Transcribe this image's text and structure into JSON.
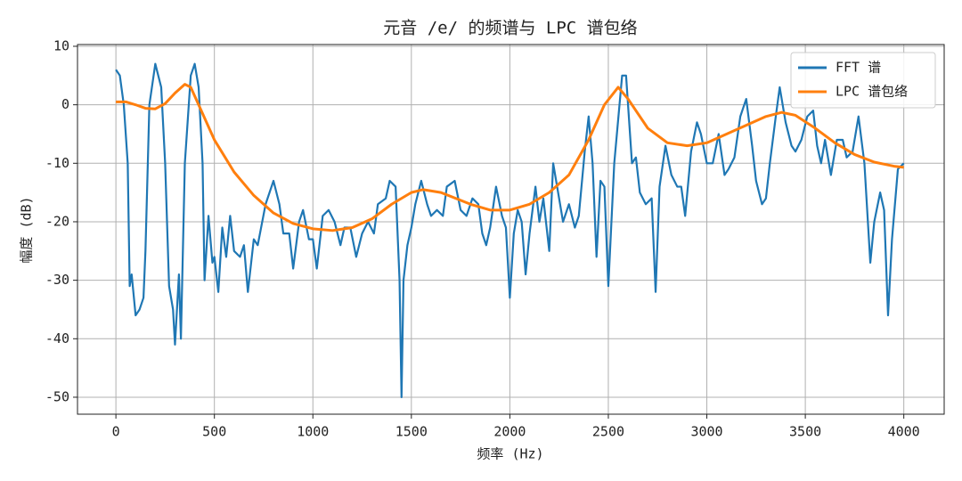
{
  "chart_data": {
    "type": "line",
    "title": "元音 /e/ 的频谱与 LPC 谱包络",
    "xlabel": "频率 (Hz)",
    "ylabel": "幅度 (dB)",
    "xlim": [
      -195,
      4205
    ],
    "ylim": [
      -52.9,
      10.3
    ],
    "xticks": [
      0,
      500,
      1000,
      1500,
      2000,
      2500,
      3000,
      3500,
      4000
    ],
    "yticks": [
      10,
      0,
      -10,
      -20,
      -30,
      -40,
      -50
    ],
    "grid": true,
    "legend": "upper right",
    "series": [
      {
        "name": "FFT 谱",
        "color": "#1f77b4",
        "x": [
          0,
          20,
          40,
          60,
          70,
          80,
          100,
          120,
          140,
          150,
          170,
          200,
          230,
          250,
          270,
          290,
          300,
          320,
          330,
          350,
          380,
          400,
          420,
          440,
          450,
          470,
          490,
          500,
          520,
          540,
          560,
          580,
          600,
          630,
          650,
          670,
          700,
          720,
          760,
          800,
          830,
          850,
          880,
          900,
          930,
          950,
          980,
          1000,
          1020,
          1050,
          1080,
          1110,
          1140,
          1160,
          1190,
          1220,
          1250,
          1280,
          1310,
          1330,
          1370,
          1390,
          1420,
          1440,
          1450,
          1460,
          1480,
          1500,
          1520,
          1550,
          1580,
          1600,
          1630,
          1660,
          1680,
          1720,
          1750,
          1780,
          1810,
          1840,
          1860,
          1880,
          1900,
          1930,
          1960,
          1980,
          2000,
          2020,
          2040,
          2060,
          2080,
          2100,
          2130,
          2150,
          2170,
          2200,
          2220,
          2250,
          2270,
          2300,
          2330,
          2350,
          2380,
          2400,
          2420,
          2440,
          2460,
          2480,
          2500,
          2530,
          2570,
          2590,
          2620,
          2640,
          2660,
          2690,
          2720,
          2740,
          2760,
          2790,
          2820,
          2850,
          2870,
          2890,
          2920,
          2950,
          2970,
          3000,
          3030,
          3060,
          3090,
          3110,
          3140,
          3170,
          3200,
          3230,
          3250,
          3280,
          3300,
          3320,
          3350,
          3370,
          3400,
          3430,
          3450,
          3480,
          3510,
          3540,
          3560,
          3580,
          3600,
          3630,
          3660,
          3690,
          3710,
          3740,
          3770,
          3800,
          3830,
          3850,
          3880,
          3900,
          3920,
          3940,
          3970,
          4000
        ],
        "values": [
          6,
          5,
          0,
          -10,
          -31,
          -29,
          -36,
          -35,
          -33,
          -25,
          0,
          7,
          3,
          -10,
          -31,
          -35,
          -41,
          -29,
          -40,
          -10,
          5,
          7,
          3,
          -10,
          -30,
          -19,
          -27,
          -26,
          -32,
          -21,
          -26,
          -19,
          -25,
          -26,
          -24,
          -32,
          -23,
          -24,
          -17,
          -13,
          -17,
          -22,
          -22,
          -28,
          -20,
          -18,
          -23,
          -23,
          -28,
          -19,
          -18,
          -20,
          -24,
          -21,
          -21,
          -26,
          -22,
          -20,
          -22,
          -17,
          -16,
          -13,
          -14,
          -30,
          -50,
          -30,
          -24,
          -21,
          -17,
          -13,
          -17,
          -19,
          -18,
          -19,
          -14,
          -13,
          -18,
          -19,
          -16,
          -17,
          -22,
          -24,
          -21,
          -14,
          -19,
          -21,
          -33,
          -22,
          -18,
          -20,
          -29,
          -22,
          -14,
          -20,
          -16,
          -25,
          -10,
          -16,
          -20,
          -17,
          -21,
          -19,
          -8,
          -2,
          -10,
          -26,
          -13,
          -14,
          -31,
          -10,
          5,
          5,
          -10,
          -9,
          -15,
          -17,
          -16,
          -32,
          -14,
          -7,
          -12,
          -14,
          -14,
          -19,
          -8,
          -3,
          -5,
          -10,
          -10,
          -5,
          -12,
          -11,
          -9,
          -2,
          1,
          -7,
          -13,
          -17,
          -16,
          -10,
          -2,
          3,
          -3,
          -7,
          -8,
          -6,
          -2,
          -1,
          -7,
          -10,
          -6,
          -12,
          -6,
          -6,
          -9,
          -8,
          -2,
          -10,
          -27,
          -20,
          -15,
          -18,
          -36,
          -23,
          -11,
          -10
        ]
      },
      {
        "name": "LPC 谱包络",
        "color": "#ff7f0e",
        "x": [
          0,
          50,
          100,
          150,
          200,
          250,
          300,
          350,
          380,
          420,
          500,
          600,
          700,
          800,
          900,
          1000,
          1100,
          1200,
          1300,
          1400,
          1500,
          1560,
          1650,
          1800,
          1900,
          2000,
          2100,
          2200,
          2300,
          2400,
          2480,
          2550,
          2600,
          2700,
          2800,
          2900,
          3000,
          3100,
          3200,
          3300,
          3380,
          3450,
          3550,
          3650,
          3750,
          3850,
          3950,
          4000
        ],
        "values": [
          0.5,
          0.5,
          0,
          -0.6,
          -0.7,
          0.2,
          2,
          3.5,
          3,
          0,
          -6,
          -11.5,
          -15.5,
          -18.5,
          -20.3,
          -21.2,
          -21.5,
          -21,
          -19.5,
          -17,
          -15,
          -14.5,
          -15,
          -17,
          -18,
          -18,
          -17,
          -15,
          -12,
          -6,
          0,
          3,
          1,
          -4,
          -6.5,
          -7,
          -6.5,
          -5,
          -3.5,
          -2,
          -1.3,
          -1.8,
          -4,
          -6.5,
          -8.5,
          -9.8,
          -10.5,
          -10.7
        ]
      }
    ]
  }
}
